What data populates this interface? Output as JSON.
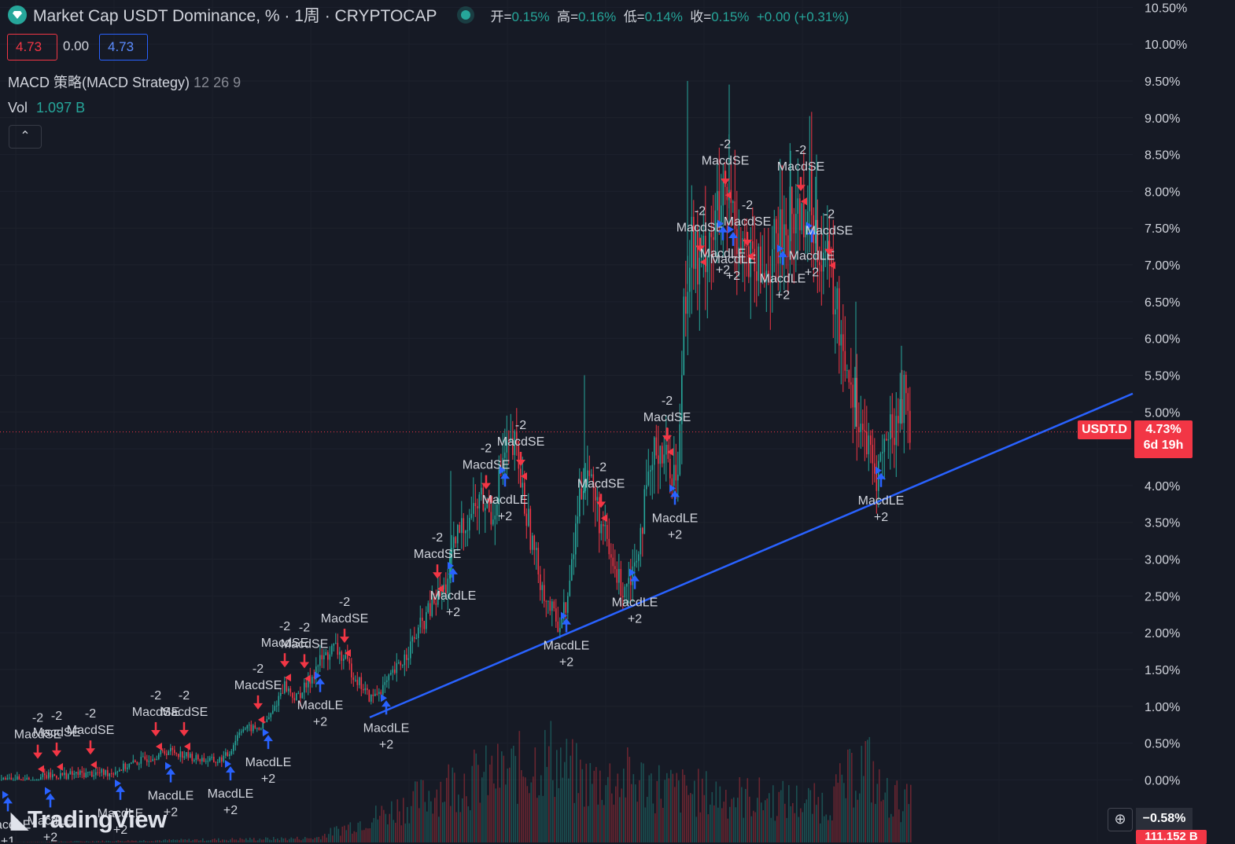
{
  "header": {
    "title": "Market Cap USDT Dominance, % · 1周 · CRYPTOCAP",
    "ohlc": [
      {
        "label": "开=",
        "value": "0.15%"
      },
      {
        "label": "高=",
        "value": "0.16%"
      },
      {
        "label": "低=",
        "value": "0.14%"
      },
      {
        "label": "收=",
        "value": "0.15%"
      }
    ],
    "change": "+0.00 (+0.31%)"
  },
  "price_boxes": {
    "sell": "4.73",
    "spread": "0.00",
    "buy": "4.73"
  },
  "indicator": {
    "name": "MACD 策略(MACD Strategy)",
    "params": "12 26 9"
  },
  "volume": {
    "label": "Vol",
    "value": "1.097 B"
  },
  "collapse_glyph": "⌃",
  "brand": "TradingView",
  "current_tag": {
    "symbol": "USDT.D",
    "value": "4.73%",
    "countdown": "6d 19h"
  },
  "bottom_tags": {
    "pct": "−0.58%",
    "vol": "111.152 B",
    "zoom_glyph": "⊕"
  },
  "colors": {
    "bg": "#161a25",
    "up": "#26a69a",
    "down": "#f23645",
    "trend": "#2962ff",
    "long_arrow": "#2962ff",
    "short_arrow": "#f23645"
  },
  "chart_data": {
    "type": "candlestick",
    "y_axis": {
      "ticks": [
        "10.50%",
        "10.00%",
        "9.50%",
        "9.00%",
        "8.50%",
        "8.00%",
        "7.50%",
        "7.00%",
        "6.50%",
        "6.00%",
        "5.50%",
        "5.00%",
        "4.50%",
        "4.00%",
        "3.50%",
        "3.00%",
        "2.50%",
        "2.00%",
        "1.50%",
        "1.00%",
        "0.50%",
        "0.00%"
      ],
      "tick_values": [
        10.5,
        10.0,
        9.5,
        9.0,
        8.5,
        8.0,
        7.5,
        7.0,
        6.5,
        6.0,
        5.5,
        5.0,
        4.5,
        4.0,
        3.5,
        3.0,
        2.5,
        2.0,
        1.5,
        1.0,
        0.5,
        0.0
      ],
      "range": [
        -0.85,
        10.6
      ]
    },
    "x_range": [
      0,
      1570
    ],
    "last_value": 4.73,
    "price_key": [
      [
        0,
        0.0
      ],
      [
        30,
        0.0
      ],
      [
        60,
        0.05
      ],
      [
        100,
        0.08
      ],
      [
        140,
        0.1
      ],
      [
        175,
        0.25
      ],
      [
        215,
        0.4
      ],
      [
        245,
        0.3
      ],
      [
        275,
        0.25
      ],
      [
        290,
        0.35
      ],
      [
        305,
        0.7
      ],
      [
        330,
        0.7
      ],
      [
        345,
        0.9
      ],
      [
        360,
        1.3
      ],
      [
        375,
        1.1
      ],
      [
        390,
        1.3
      ],
      [
        405,
        1.6
      ],
      [
        425,
        1.8
      ],
      [
        445,
        1.5
      ],
      [
        470,
        1.1
      ],
      [
        490,
        1.3
      ],
      [
        510,
        1.6
      ],
      [
        530,
        2.0
      ],
      [
        550,
        2.4
      ],
      [
        565,
        2.6
      ],
      [
        580,
        3.3
      ],
      [
        595,
        3.6
      ],
      [
        610,
        3.8
      ],
      [
        625,
        3.6
      ],
      [
        640,
        4.4
      ],
      [
        655,
        4.5
      ],
      [
        665,
        3.8
      ],
      [
        680,
        3.0
      ],
      [
        695,
        2.4
      ],
      [
        710,
        2.1
      ],
      [
        722,
        2.5
      ],
      [
        735,
        3.8
      ],
      [
        745,
        4.3
      ],
      [
        760,
        3.6
      ],
      [
        775,
        3.0
      ],
      [
        790,
        2.6
      ],
      [
        805,
        2.9
      ],
      [
        820,
        3.8
      ],
      [
        835,
        4.6
      ],
      [
        850,
        4.3
      ],
      [
        862,
        4.1
      ],
      [
        868,
        6.5
      ],
      [
        878,
        7.4
      ],
      [
        888,
        6.8
      ],
      [
        898,
        7.4
      ],
      [
        912,
        7.6
      ],
      [
        925,
        7.9
      ],
      [
        938,
        7.5
      ],
      [
        950,
        7.0
      ],
      [
        962,
        6.8
      ],
      [
        975,
        7.0
      ],
      [
        990,
        7.3
      ],
      [
        1002,
        7.6
      ],
      [
        1015,
        7.7
      ],
      [
        1028,
        7.9
      ],
      [
        1040,
        7.4
      ],
      [
        1052,
        7.0
      ],
      [
        1065,
        6.2
      ],
      [
        1078,
        5.6
      ],
      [
        1090,
        5.0
      ],
      [
        1102,
        4.5
      ],
      [
        1112,
        4.1
      ],
      [
        1125,
        4.6
      ],
      [
        1140,
        4.9
      ],
      [
        1150,
        5.3
      ],
      [
        1157,
        4.73
      ]
    ],
    "volume_key": [
      [
        0,
        0.0
      ],
      [
        400,
        0.05
      ],
      [
        460,
        0.25
      ],
      [
        520,
        0.45
      ],
      [
        575,
        0.7
      ],
      [
        640,
        0.8
      ],
      [
        700,
        1.0
      ],
      [
        720,
        0.85
      ],
      [
        745,
        0.7
      ],
      [
        800,
        0.75
      ],
      [
        860,
        0.6
      ],
      [
        920,
        0.55
      ],
      [
        980,
        0.5
      ],
      [
        1050,
        0.45
      ],
      [
        1100,
        0.95
      ],
      [
        1120,
        0.55
      ],
      [
        1157,
        0.45
      ]
    ],
    "signals": [
      {
        "x": 10,
        "kind": "long",
        "label": "MacdLE",
        "qty": "+1"
      },
      {
        "x": 48,
        "kind": "short",
        "label": "MacdSE",
        "qty": "-2"
      },
      {
        "x": 64,
        "kind": "long",
        "label": "MacdLE",
        "qty": "+2"
      },
      {
        "x": 72,
        "kind": "short",
        "label": "MacdSE",
        "qty": "-2"
      },
      {
        "x": 115,
        "kind": "short",
        "label": "MacdSE",
        "qty": "-2"
      },
      {
        "x": 153,
        "kind": "long",
        "label": "MacdLE",
        "qty": "+2"
      },
      {
        "x": 198,
        "kind": "short",
        "label": "MacdSE",
        "qty": "-2"
      },
      {
        "x": 217,
        "kind": "long",
        "label": "MacdLE",
        "qty": "+2"
      },
      {
        "x": 234,
        "kind": "short",
        "label": "MacdSE",
        "qty": "-2"
      },
      {
        "x": 293,
        "kind": "long",
        "label": "MacdLE",
        "qty": "+2"
      },
      {
        "x": 328,
        "kind": "short",
        "label": "MacdSE",
        "qty": "-2"
      },
      {
        "x": 341,
        "kind": "long",
        "label": "MacdLE",
        "qty": "+2"
      },
      {
        "x": 362,
        "kind": "short",
        "label": "MacdSE",
        "qty": "-2"
      },
      {
        "x": 387,
        "kind": "short",
        "label": "MacdSE",
        "qty": "-2"
      },
      {
        "x": 407,
        "kind": "long",
        "label": "MacdLE",
        "qty": "+2"
      },
      {
        "x": 438,
        "kind": "short",
        "label": "MacdSE",
        "qty": "-2"
      },
      {
        "x": 491,
        "kind": "long",
        "label": "MacdLE",
        "qty": "+2"
      },
      {
        "x": 556,
        "kind": "short",
        "label": "MacdSE",
        "qty": "-2"
      },
      {
        "x": 576,
        "kind": "long",
        "label": "MacdLE",
        "qty": "+2"
      },
      {
        "x": 618,
        "kind": "short",
        "label": "MacdSE",
        "qty": "-2"
      },
      {
        "x": 642,
        "kind": "long",
        "label": "MacdLE",
        "qty": "+2"
      },
      {
        "x": 662,
        "kind": "short",
        "label": "MacdSE",
        "qty": "-2"
      },
      {
        "x": 720,
        "kind": "long",
        "label": "MacdLE",
        "qty": "+2"
      },
      {
        "x": 764,
        "kind": "short",
        "label": "MacdSE",
        "qty": "-2"
      },
      {
        "x": 807,
        "kind": "long",
        "label": "MacdLE",
        "qty": "+2"
      },
      {
        "x": 848,
        "kind": "short",
        "label": "MacdSE",
        "qty": "-2"
      },
      {
        "x": 858,
        "kind": "long",
        "label": "MacdLE",
        "qty": "+2"
      },
      {
        "x": 890,
        "kind": "short",
        "label": "MacdSE",
        "qty": "-2"
      },
      {
        "x": 919,
        "kind": "long",
        "label": "MacdLE",
        "qty": "+2"
      },
      {
        "x": 922,
        "kind": "short",
        "label": "MacdSE",
        "qty": "-2"
      },
      {
        "x": 932,
        "kind": "long",
        "label": "MacdLE",
        "qty": "+2"
      },
      {
        "x": 950,
        "kind": "short",
        "label": "MacdSE",
        "qty": "-2"
      },
      {
        "x": 995,
        "kind": "long",
        "label": "MacdLE",
        "qty": "+2"
      },
      {
        "x": 1018,
        "kind": "short",
        "label": "MacdSE",
        "qty": "-2"
      },
      {
        "x": 1032,
        "kind": "long",
        "label": "MacdLE",
        "qty": "+2"
      },
      {
        "x": 1054,
        "kind": "short",
        "label": "MacdSE",
        "qty": "-2"
      },
      {
        "x": 1120,
        "kind": "long",
        "label": "MacdLE",
        "qty": "+2"
      }
    ],
    "trend_line": {
      "from": {
        "x": 470,
        "y": 0.85
      },
      "to": {
        "x": 1440,
        "y": 5.25
      }
    }
  }
}
